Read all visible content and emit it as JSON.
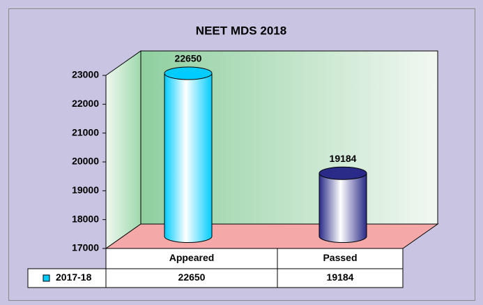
{
  "chart_data": {
    "type": "bar3d",
    "title": "NEET MDS 2018",
    "categories": [
      "Appeared",
      "Passed"
    ],
    "series": [
      {
        "name": "2017-18",
        "colors": [
          "#00ccff",
          "#2a2a88"
        ],
        "values": [
          22650,
          19184
        ]
      }
    ],
    "ylim": [
      17000,
      23000
    ],
    "yticks": [
      17000,
      18000,
      19000,
      20000,
      21000,
      22000,
      23000
    ]
  }
}
